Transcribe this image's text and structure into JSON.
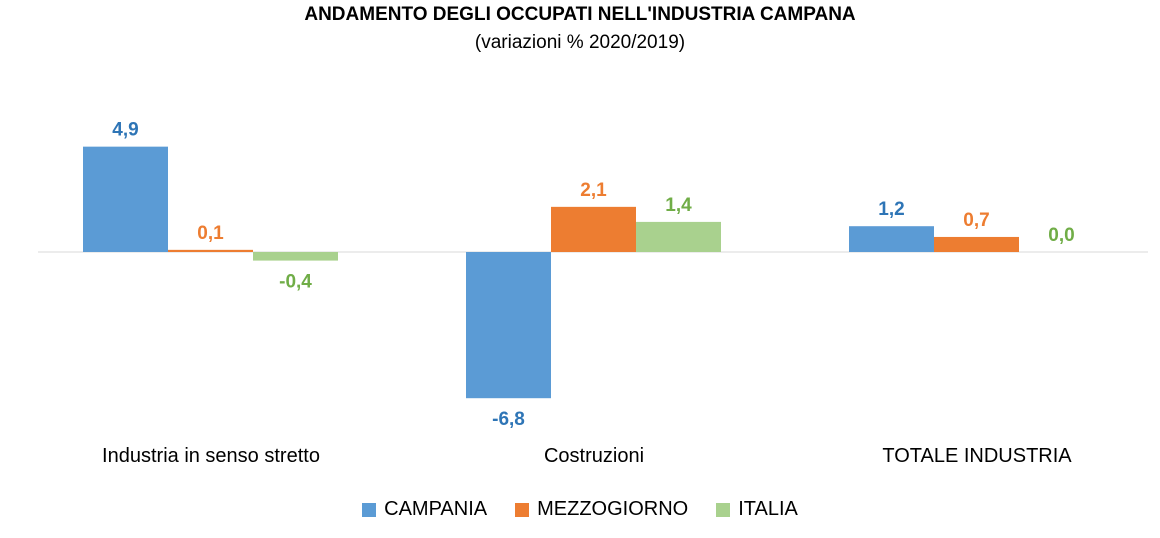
{
  "chart_data": {
    "type": "bar",
    "title": "ANDAMENTO DEGLI OCCUPATI NELL'INDUSTRIA CAMPANA",
    "subtitle": "(variazioni % 2020/2019)",
    "categories": [
      "Industria in senso stretto",
      "Costruzioni",
      "TOTALE INDUSTRIA"
    ],
    "series": [
      {
        "name": "CAMPANIA",
        "values": [
          4.9,
          -6.8,
          1.2
        ],
        "labels": [
          "4,9",
          "-6,8",
          "1,2"
        ],
        "color": "#5b9bd5"
      },
      {
        "name": "MEZZOGIORNO",
        "values": [
          0.1,
          2.1,
          0.7
        ],
        "labels": [
          "0,1",
          "2,1",
          "0,7"
        ],
        "color": "#ed7d31"
      },
      {
        "name": "ITALIA",
        "values": [
          -0.4,
          1.4,
          0.0
        ],
        "labels": [
          "-0,4",
          "1,4",
          "0,0"
        ],
        "color": "#a9d18e"
      }
    ],
    "label_colors": [
      "#2e75b6",
      "#ed7d31",
      "#70ad47"
    ],
    "ylim": [
      -6.8,
      4.9
    ],
    "grid": false,
    "legend_position": "bottom"
  }
}
